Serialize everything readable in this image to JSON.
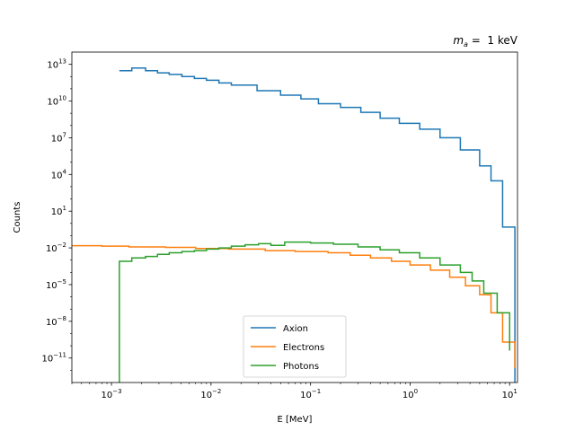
{
  "chart_data": {
    "type": "line",
    "style": "step-histogram",
    "title_parts": {
      "math": "m",
      "sub": "a",
      "rest": " =  1 keV"
    },
    "xlabel": "E [MeV]",
    "ylabel": "Counts",
    "xscale": "log",
    "yscale": "log",
    "xlim": [
      0.0004,
      12
    ],
    "ylim": [
      1e-13,
      100000000000000.0
    ],
    "grid": false,
    "legend_position": "lower-center",
    "x_ticks": [
      {
        "value": 0.001,
        "base": "10",
        "exp": "−3"
      },
      {
        "value": 0.01,
        "base": "10",
        "exp": "−2"
      },
      {
        "value": 0.1,
        "base": "10",
        "exp": "−1"
      },
      {
        "value": 1,
        "base": "10",
        "exp": "0"
      },
      {
        "value": 10,
        "base": "10",
        "exp": "1"
      }
    ],
    "y_ticks": [
      {
        "value": 10000000000000.0,
        "base": "10",
        "exp": "13"
      },
      {
        "value": 10000000000.0,
        "base": "10",
        "exp": "10"
      },
      {
        "value": 10000000.0,
        "base": "10",
        "exp": "7"
      },
      {
        "value": 10000.0,
        "base": "10",
        "exp": "4"
      },
      {
        "value": 10.0,
        "base": "10",
        "exp": "1"
      },
      {
        "value": 0.01,
        "base": "10",
        "exp": "−2"
      },
      {
        "value": 1e-05,
        "base": "10",
        "exp": "−5"
      },
      {
        "value": 1e-08,
        "base": "10",
        "exp": "−8"
      },
      {
        "value": 1e-11,
        "base": "10",
        "exp": "−11"
      }
    ],
    "series": [
      {
        "name": "Axion",
        "color": "#1f77b4",
        "edges": [
          0.0012,
          0.0016,
          0.0022,
          0.0029,
          0.0038,
          0.0051,
          0.0068,
          0.009,
          0.012,
          0.016,
          0.029,
          0.05,
          0.08,
          0.12,
          0.2,
          0.32,
          0.5,
          0.78,
          1.25,
          2.0,
          3.2,
          5.0,
          6.5,
          8.5,
          11.3
        ],
        "values": [
          3000000000000.0,
          5000000000000.0,
          3000000000000.0,
          2000000000000.0,
          1500000000000.0,
          1000000000000.0,
          700000000000.0,
          500000000000.0,
          300000000000.0,
          200000000000.0,
          70000000000.0,
          30000000000.0,
          15000000000.0,
          6000000000.0,
          3000000000.0,
          1200000000.0,
          400000000.0,
          150000000.0,
          50000000.0,
          10000000.0,
          1000000.0,
          50000.0,
          3000.0,
          0.5
        ],
        "tail": {
          "x": 11.3,
          "y": 1e-13
        }
      },
      {
        "name": "Electrons",
        "color": "#ff7f0e",
        "edges": [
          0.0004,
          0.0008,
          0.0015,
          0.0035,
          0.007,
          0.015,
          0.035,
          0.07,
          0.15,
          0.25,
          0.4,
          0.65,
          1.0,
          1.6,
          2.5,
          3.6,
          5.0,
          6.5,
          8.5,
          11.3
        ],
        "values": [
          0.015,
          0.014,
          0.012,
          0.011,
          0.009,
          0.008,
          0.006,
          0.005,
          0.004,
          0.0025,
          0.0015,
          0.0008,
          0.0004,
          0.00015,
          4e-05,
          8e-06,
          1.5e-06,
          5e-08,
          2e-10,
          1.5e-12
        ],
        "tail": {
          "x": 11.3,
          "y": 1e-13
        }
      },
      {
        "name": "Photons",
        "color": "#2ca02c",
        "edges": [
          0.0012,
          0.0016,
          0.0022,
          0.0029,
          0.0038,
          0.0051,
          0.0068,
          0.009,
          0.012,
          0.016,
          0.022,
          0.03,
          0.04,
          0.055,
          0.1,
          0.17,
          0.3,
          0.5,
          0.78,
          1.25,
          2.0,
          3.2,
          4.2,
          5.5,
          7.5,
          10.0
        ],
        "values": [
          0.0008,
          0.0015,
          0.002,
          0.003,
          0.004,
          0.005,
          0.006,
          0.008,
          0.01,
          0.014,
          0.018,
          0.022,
          0.016,
          0.03,
          0.025,
          0.02,
          0.012,
          0.007,
          0.004,
          0.0015,
          0.0004,
          0.0001,
          2e-05,
          2e-06,
          5e-08,
          4e-11
        ],
        "lead": {
          "x": 0.0012,
          "y": 1e-13
        },
        "tail": {
          "x": 11.3,
          "y": 1e-13
        }
      }
    ]
  }
}
